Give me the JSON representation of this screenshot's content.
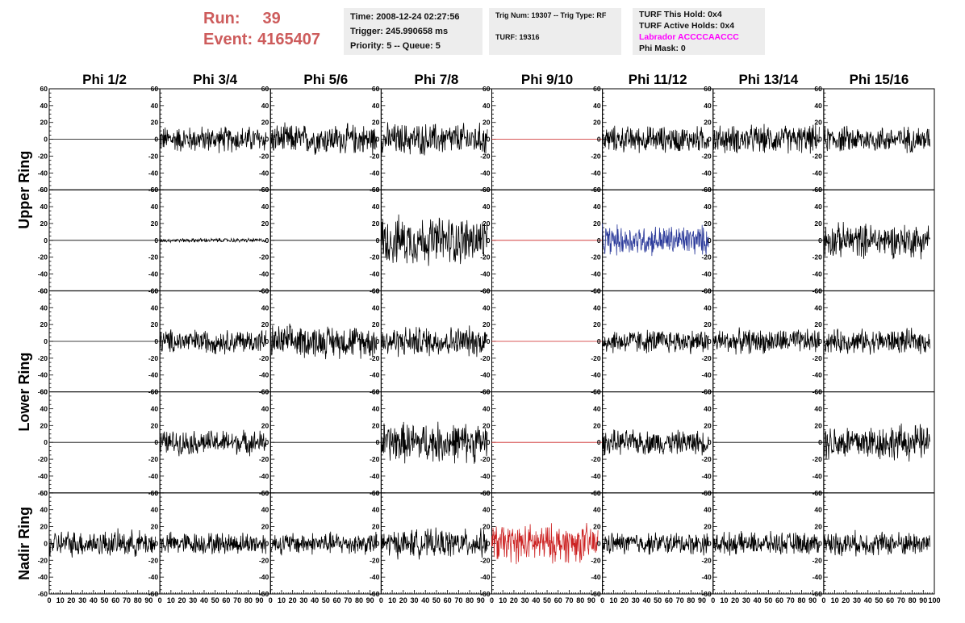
{
  "header": {
    "run_label": "Run:",
    "run_value": "39",
    "event_label": "Event:",
    "event_value": "4165407",
    "time": "Time: 2008-12-24 02:27:56",
    "trigger": "Trigger: 245.990658 ms",
    "priority": "Priority: 5 -- Queue: 5",
    "trig_num": "Trig Num: 19307 -- Trig Type: RF",
    "turf": "TURF: 19316",
    "turf_hold": "TURF This Hold: 0x4",
    "turf_active": "TURF Active Holds: 0x4",
    "labrador": "Labrador ACCCCAACCC",
    "phi_mask": "Phi Mask: 0"
  },
  "chart_data": {
    "type": "line",
    "columns": [
      "Phi 1/2",
      "Phi 3/4",
      "Phi 5/6",
      "Phi 7/8",
      "Phi 9/10",
      "Phi 11/12",
      "Phi 13/14",
      "Phi 15/16"
    ],
    "ring_labels": [
      "Upper Ring",
      "Lower Ring",
      "Nadir Ring"
    ],
    "ylim": [
      -60,
      60
    ],
    "xlim": [
      0,
      100
    ],
    "y_ticks": [
      "60",
      "40",
      "20",
      "0",
      "-20",
      "-40",
      "-60"
    ],
    "x_ticks": [
      "0",
      "10",
      "20",
      "30",
      "40",
      "50",
      "60",
      "70",
      "80",
      "90",
      "100"
    ],
    "colors": {
      "default": "#000000",
      "flat_highlight": "#cc2222",
      "blue": "#2b3a9a",
      "red": "#cc2222"
    },
    "panels": [
      [
        {
          "amp": 0,
          "color": "default"
        },
        {
          "amp": 13,
          "color": "default"
        },
        {
          "amp": 15,
          "color": "default"
        },
        {
          "amp": 16,
          "color": "default"
        },
        {
          "amp": 0,
          "color": "flat_highlight"
        },
        {
          "amp": 13,
          "color": "default"
        },
        {
          "amp": 14,
          "color": "default"
        },
        {
          "amp": 13,
          "color": "default"
        }
      ],
      [
        {
          "amp": 0,
          "color": "default"
        },
        {
          "amp": 2,
          "color": "default"
        },
        {
          "amp": 0,
          "color": "default"
        },
        {
          "amp": 24,
          "color": "default"
        },
        {
          "amp": 0,
          "color": "flat_highlight"
        },
        {
          "amp": 15,
          "color": "blue"
        },
        {
          "amp": 0,
          "color": "default"
        },
        {
          "amp": 17,
          "color": "default"
        }
      ],
      [
        {
          "amp": 0,
          "color": "default"
        },
        {
          "amp": 12,
          "color": "default"
        },
        {
          "amp": 16,
          "color": "default"
        },
        {
          "amp": 15,
          "color": "default"
        },
        {
          "amp": 0,
          "color": "flat_highlight"
        },
        {
          "amp": 12,
          "color": "default"
        },
        {
          "amp": 12,
          "color": "default"
        },
        {
          "amp": 12,
          "color": "default"
        }
      ],
      [
        {
          "amp": 0,
          "color": "default"
        },
        {
          "amp": 12,
          "color": "default"
        },
        {
          "amp": 0,
          "color": "default"
        },
        {
          "amp": 20,
          "color": "default"
        },
        {
          "amp": 0,
          "color": "flat_highlight"
        },
        {
          "amp": 12,
          "color": "default"
        },
        {
          "amp": 0,
          "color": "default"
        },
        {
          "amp": 18,
          "color": "default"
        }
      ],
      [
        {
          "amp": 13,
          "color": "default"
        },
        {
          "amp": 11,
          "color": "default"
        },
        {
          "amp": 11,
          "color": "default"
        },
        {
          "amp": 14,
          "color": "default"
        },
        {
          "amp": 19,
          "color": "red"
        },
        {
          "amp": 11,
          "color": "default"
        },
        {
          "amp": 11,
          "color": "default"
        },
        {
          "amp": 12,
          "color": "default"
        }
      ]
    ]
  }
}
